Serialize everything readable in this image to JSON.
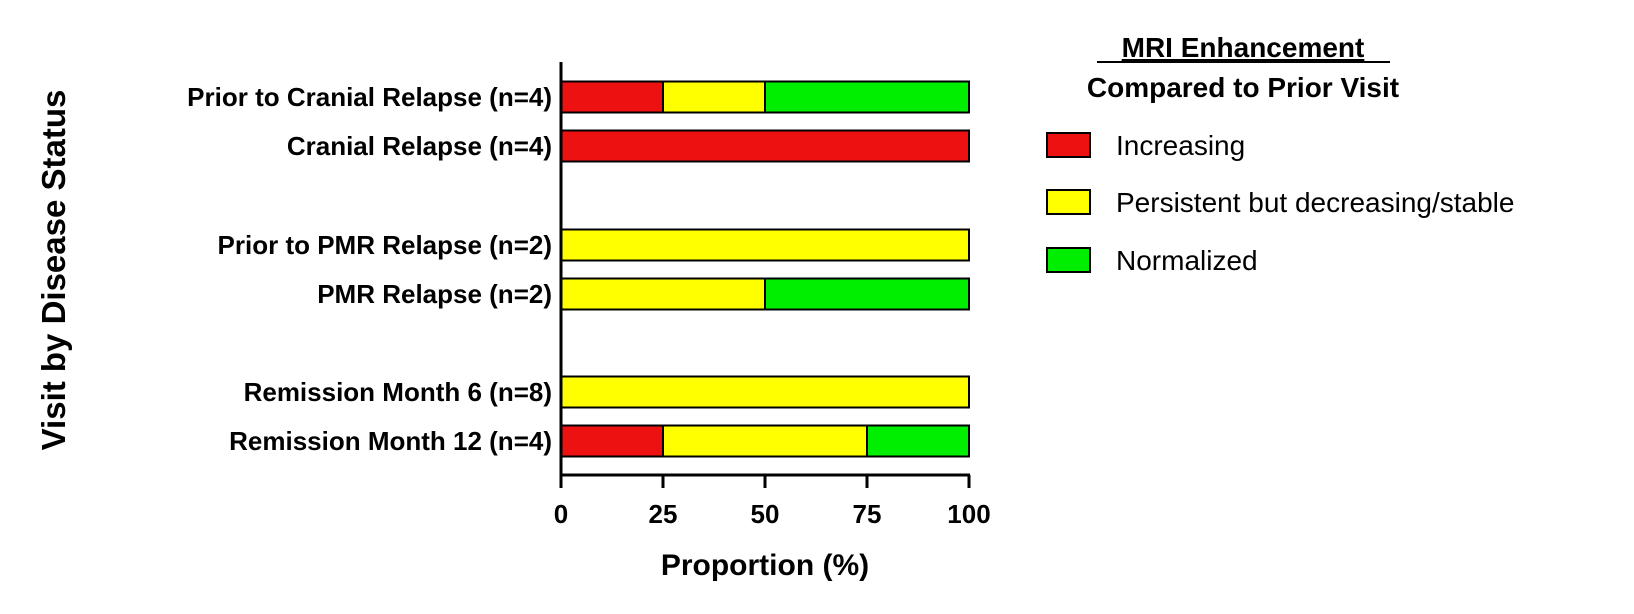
{
  "chart_data": {
    "type": "bar",
    "orientation": "horizontal",
    "stacked": true,
    "xlabel": "Proportion (%)",
    "ylabel": "Visit by Disease Status",
    "xlim": [
      0,
      100
    ],
    "xticks": [
      "0",
      "25",
      "50",
      "75",
      "100"
    ],
    "grid": false,
    "legend": {
      "title_line1": "MRI Enhancement",
      "title_line2": "Compared to Prior Visit",
      "placement": "right"
    },
    "categories": [
      "Prior to Cranial Relapse (n=4)",
      "Cranial Relapse (n=4)",
      "Prior to PMR Relapse (n=2)",
      "PMR Relapse (n=2)",
      "Remission Month 6 (n=8)",
      "Remission Month 12 (n=4)"
    ],
    "series": [
      {
        "name": "Increasing",
        "color": "#ee1111",
        "values": [
          25,
          100,
          0,
          0,
          0,
          25
        ]
      },
      {
        "name": "Persistent but decreasing/stable",
        "color": "#ffff00",
        "values": [
          25,
          0,
          100,
          50,
          100,
          50
        ]
      },
      {
        "name": "Normalized",
        "color": "#00ee00",
        "values": [
          50,
          0,
          0,
          50,
          0,
          25
        ]
      }
    ]
  }
}
